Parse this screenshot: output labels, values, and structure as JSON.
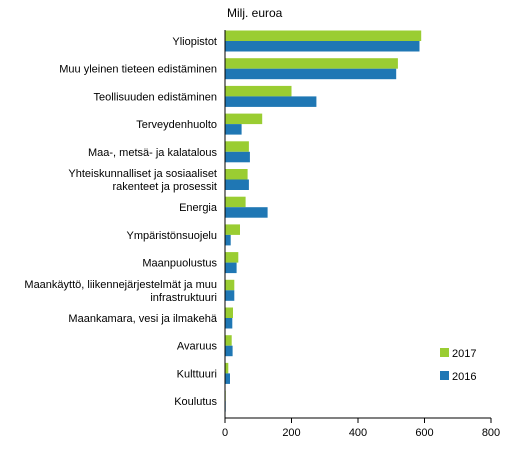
{
  "chart_data": {
    "type": "bar",
    "orientation": "horizontal",
    "unit_label": "Milj. euroa",
    "categories": [
      "Yliopistot",
      "Muu yleinen tieteen edistäminen",
      "Teollisuuden edistäminen",
      "Terveydenhuolto",
      "Maa-, metsä- ja kalatalous",
      [
        "Yhteiskunnalliset ja sosiaaliset",
        "rakenteet ja prosessit"
      ],
      "Energia",
      "Ympäristönsuojelu",
      "Maanpuolustus",
      [
        "Maankäyttö, liikennejärjestelmät ja muu",
        "infrastruktuuri"
      ],
      "Maankamara, vesi ja ilmakehä",
      "Avaruus",
      "Kulttuuri",
      "Koulutus"
    ],
    "series": [
      {
        "name": "2017",
        "color": "#9ACD32",
        "values": [
          590,
          520,
          200,
          112,
          72,
          68,
          62,
          45,
          40,
          28,
          24,
          20,
          10,
          2
        ]
      },
      {
        "name": "2016",
        "color": "#1F77B4",
        "values": [
          585,
          515,
          275,
          50,
          75,
          72,
          128,
          17,
          35,
          28,
          22,
          23,
          15,
          2
        ]
      }
    ],
    "xlim": [
      0,
      800
    ],
    "xticks": [
      "0",
      "200",
      "400",
      "600",
      "800"
    ],
    "legend_position": "lower-right",
    "grid": false
  }
}
